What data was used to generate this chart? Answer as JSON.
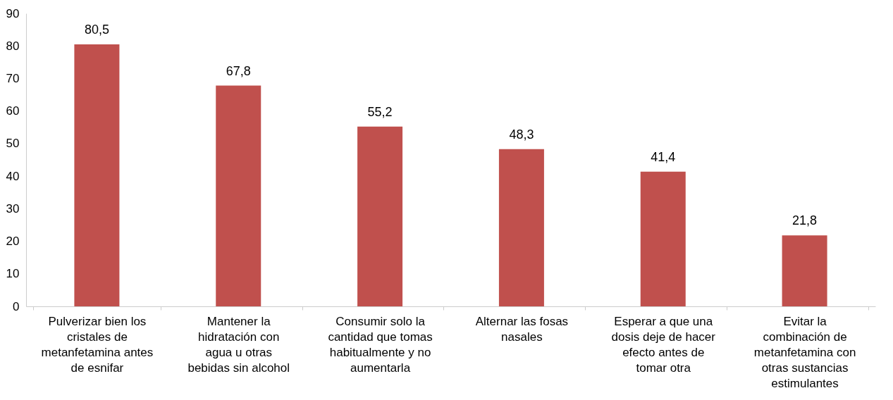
{
  "chart_data": {
    "type": "bar",
    "categories": [
      "Pulverizar bien los cristales de metanfetamina antes de esnifar",
      "Mantener la hidratación con agua u otras bebidas sin alcohol",
      "Consumir solo la cantidad que tomas habitualmente y no aumentarla",
      "Alternar las fosas nasales",
      "Esperar a que una dosis deje de hacer efecto antes de tomar otra",
      "Evitar la combinación de metanfetamina con otras sustancias estimulantes"
    ],
    "values": [
      80.5,
      67.8,
      55.2,
      48.3,
      41.4,
      21.8
    ],
    "value_labels": [
      "80,5",
      "67,8",
      "55,2",
      "48,3",
      "41,4",
      "21,8"
    ],
    "color": "#c0504d",
    "ylim": [
      0,
      90
    ],
    "yticks": [
      0,
      10,
      20,
      30,
      40,
      50,
      60,
      70,
      80,
      90
    ],
    "grid": false
  }
}
